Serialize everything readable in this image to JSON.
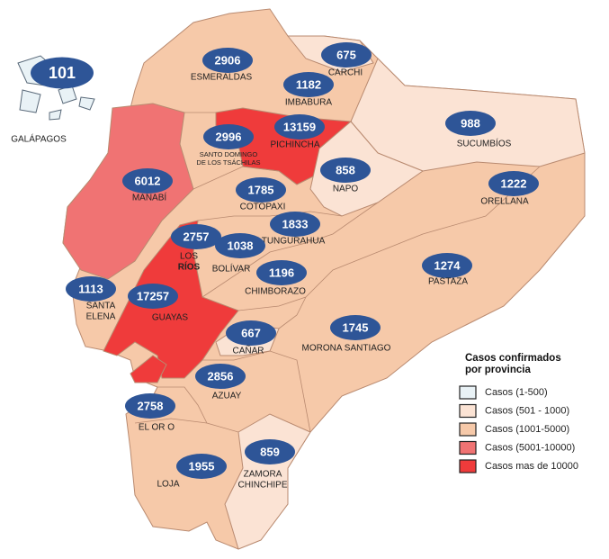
{
  "legend": {
    "title": [
      "Casos confirmados",
      "por provincia"
    ],
    "items": [
      {
        "label": "Casos (1-500)",
        "color": "#e9f2f6"
      },
      {
        "label": "Casos (501 - 1000)",
        "color": "#fbe3d4"
      },
      {
        "label": "Casos (1001-5000)",
        "color": "#f6c9a9"
      },
      {
        "label": "Casos (5001-10000)",
        "color": "#f07373"
      },
      {
        "label": "Casos mas de 10000",
        "color": "#ef3b3b"
      }
    ]
  },
  "provinces": [
    {
      "name": [
        "GALÁPAGOS"
      ],
      "cases": 101,
      "color": "#e9f2f6"
    },
    {
      "name": [
        "ESMERALDAS"
      ],
      "cases": 2906,
      "color": "#f6c9a9"
    },
    {
      "name": [
        "CARCHI"
      ],
      "cases": 675,
      "color": "#fbe3d4"
    },
    {
      "name": [
        "IMBABURA"
      ],
      "cases": 1182,
      "color": "#f6c9a9"
    },
    {
      "name": [
        "SUCUMBÍOS"
      ],
      "cases": 988,
      "color": "#fbe3d4"
    },
    {
      "name": [
        "PICHINCHA"
      ],
      "cases": 13159,
      "color": "#ef3b3b"
    },
    {
      "name": [
        "SANTO DOMINGO",
        "DE LOS TSÁCHILAS"
      ],
      "cases": 2996,
      "color": "#f6c9a9"
    },
    {
      "name": [
        "MANABÍ"
      ],
      "cases": 6012,
      "color": "#f07373"
    },
    {
      "name": [
        "NAPO"
      ],
      "cases": 858,
      "color": "#fbe3d4"
    },
    {
      "name": [
        "ORELLANA"
      ],
      "cases": 1222,
      "color": "#f6c9a9"
    },
    {
      "name": [
        "COTOPAXI"
      ],
      "cases": 1785,
      "color": "#f6c9a9"
    },
    {
      "name": [
        "TUNGURAHUA"
      ],
      "cases": 1833,
      "color": "#f6c9a9"
    },
    {
      "name": [
        "LOS",
        "RÍOS"
      ],
      "cases": 2757,
      "color": "#f6c9a9"
    },
    {
      "name": [
        "BOLÍVAR"
      ],
      "cases": 1038,
      "color": "#f6c9a9"
    },
    {
      "name": [
        "PASTAZA"
      ],
      "cases": 1274,
      "color": "#f6c9a9"
    },
    {
      "name": [
        "CHIMBORAZO"
      ],
      "cases": 1196,
      "color": "#f6c9a9"
    },
    {
      "name": [
        "SANTA",
        "ELENA"
      ],
      "cases": 1113,
      "color": "#f6c9a9"
    },
    {
      "name": [
        "GUAYAS"
      ],
      "cases": 17257,
      "color": "#ef3b3b"
    },
    {
      "name": [
        "CAÑAR"
      ],
      "cases": 667,
      "color": "#fbe3d4"
    },
    {
      "name": [
        "MORONA SANTIAGO"
      ],
      "cases": 1745,
      "color": "#f6c9a9"
    },
    {
      "name": [
        "AZUAY"
      ],
      "cases": 2856,
      "color": "#f6c9a9"
    },
    {
      "name": [
        "EL OR O"
      ],
      "cases": 2758,
      "color": "#f6c9a9"
    },
    {
      "name": [
        "ZAMORA",
        "CHINCHIPE"
      ],
      "cases": 859,
      "color": "#fbe3d4"
    },
    {
      "name": [
        "LOJA"
      ],
      "cases": 1955,
      "color": "#f6c9a9"
    }
  ]
}
